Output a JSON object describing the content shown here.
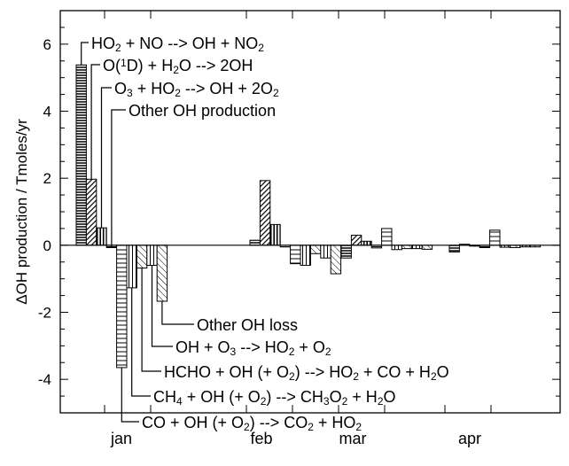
{
  "chart_data": {
    "type": "bar",
    "title": "",
    "xlabel": "",
    "ylabel": "ΔOH production / Tmoles/yr",
    "ylim": [
      -5,
      7
    ],
    "yticks": [
      -4,
      -2,
      0,
      2,
      4,
      6
    ],
    "categories": [
      "jan",
      "feb",
      "mar",
      "apr"
    ],
    "series_labels": [
      {
        "id": "s1",
        "pre": "HO",
        "sub1": "2",
        "mid": " + NO --> OH + NO",
        "sub2": "2",
        "post": ""
      },
      {
        "id": "s2",
        "text": "O(1D) + H2O --> 2OH"
      },
      {
        "id": "s3",
        "text": "O3 + HO2 --> OH + 2O2"
      },
      {
        "id": "s4",
        "text": "Other OH production"
      },
      {
        "id": "s5",
        "text": "CO + OH (+ O2) --> CO2 + HO2"
      },
      {
        "id": "s6",
        "text": "CH4 + OH (+ O2) --> CH3O2 + H2O"
      },
      {
        "id": "s7",
        "text": "HCHO + OH (+ O2) --> HO2 + CO + H2O"
      },
      {
        "id": "s8",
        "text": "OH + O3 --> HO2 + O2"
      },
      {
        "id": "s9",
        "text": "Other OH loss"
      }
    ],
    "series": [
      {
        "id": "s1",
        "pattern": "horiz-dense",
        "values": [
          5.38,
          0.15,
          -0.38,
          -0.2
        ]
      },
      {
        "id": "s2",
        "pattern": "diag-dense",
        "values": [
          1.97,
          1.93,
          0.3,
          0.03
        ]
      },
      {
        "id": "s3",
        "pattern": "vert",
        "values": [
          0.52,
          0.62,
          0.12,
          0.0
        ]
      },
      {
        "id": "s4",
        "pattern": "horiz-fine",
        "values": [
          -0.07,
          -0.05,
          -0.08,
          -0.07
        ]
      },
      {
        "id": "s5",
        "pattern": "horiz-sparse",
        "values": [
          -3.65,
          -0.55,
          0.5,
          0.45
        ]
      },
      {
        "id": "s6",
        "pattern": "vert-sparse",
        "values": [
          -1.27,
          -0.6,
          -0.13,
          -0.06
        ]
      },
      {
        "id": "s7",
        "pattern": "diag-sparse",
        "values": [
          -0.68,
          -0.25,
          -0.1,
          -0.07
        ]
      },
      {
        "id": "s8",
        "pattern": "vert-sparse",
        "values": [
          -0.6,
          -0.38,
          -0.1,
          -0.05
        ]
      },
      {
        "id": "s9",
        "pattern": "diag-sparse",
        "values": [
          -1.67,
          -0.85,
          -0.12,
          -0.05
        ]
      }
    ]
  }
}
